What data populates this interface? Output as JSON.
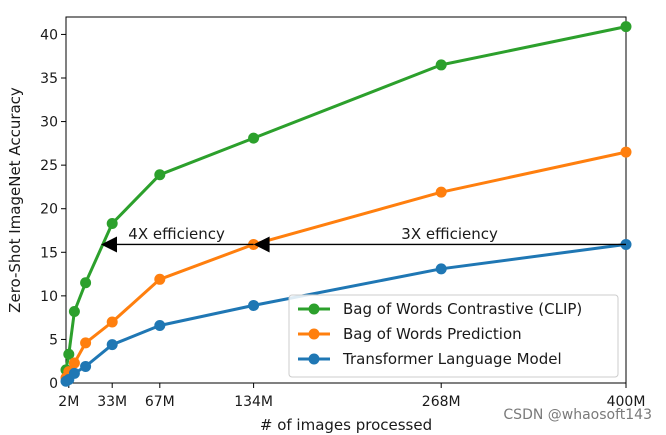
{
  "chart_data": {
    "type": "line",
    "title": "",
    "xlabel": "# of images processed",
    "ylabel": "Zero-Shot ImageNet Accuracy",
    "xlim": [
      0,
      400
    ],
    "ylim": [
      0,
      42
    ],
    "grid": false,
    "x_ticks": [
      {
        "value": 2,
        "label": "2M"
      },
      {
        "value": 33,
        "label": "33M"
      },
      {
        "value": 67,
        "label": "67M"
      },
      {
        "value": 134,
        "label": "134M"
      },
      {
        "value": 268,
        "label": "268M"
      },
      {
        "value": 400,
        "label": "400M"
      }
    ],
    "y_ticks": [
      0,
      5,
      10,
      15,
      20,
      25,
      30,
      35,
      40
    ],
    "legend_position": "bottom-right",
    "series": [
      {
        "name": "Bag of Words Contrastive (CLIP)",
        "color": "#2ca02c",
        "x": [
          0,
          2,
          6,
          14,
          33,
          67,
          134,
          268,
          400
        ],
        "y": [
          1.5,
          3.3,
          8.2,
          11.5,
          18.3,
          23.9,
          28.1,
          36.5,
          40.9
        ]
      },
      {
        "name": "Bag of Words Prediction",
        "color": "#ff7f0e",
        "x": [
          0,
          2,
          6,
          14,
          33,
          67,
          134,
          268,
          400
        ],
        "y": [
          0.6,
          1.3,
          2.3,
          4.6,
          7.0,
          11.9,
          15.9,
          21.9,
          26.5
        ]
      },
      {
        "name": "Transformer Language Model",
        "color": "#1f77b4",
        "x": [
          0,
          2,
          6,
          14,
          33,
          67,
          134,
          268,
          400
        ],
        "y": [
          0.2,
          0.4,
          1.1,
          1.9,
          4.4,
          6.6,
          8.9,
          13.1,
          15.9
        ]
      }
    ],
    "annotations": [
      {
        "text": "4X efficiency",
        "x_from": 134,
        "x_to": 25,
        "y": 15.9,
        "text_x": 79,
        "text_y": 16.5
      },
      {
        "text": "3X efficiency",
        "x_from": 400,
        "x_to": 134,
        "y": 15.9,
        "text_x": 274,
        "text_y": 16.5
      }
    ]
  },
  "watermark": "CSDN @whaosoft143"
}
